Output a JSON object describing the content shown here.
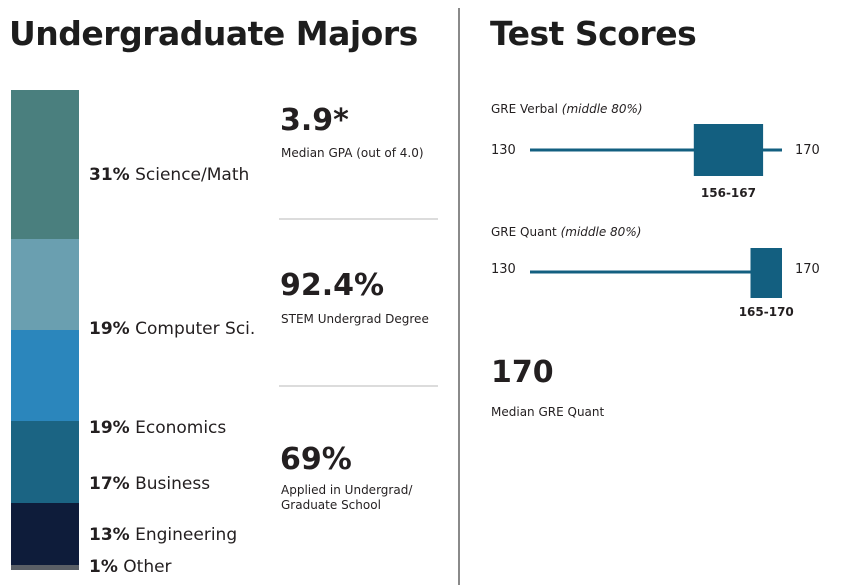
{
  "left_heading": "Undergraduate Majors",
  "right_heading": "Test Scores",
  "chart_data": [
    {
      "type": "bar",
      "stacked": true,
      "orientation": "vertical",
      "unit": "%",
      "categories": [
        "Science/Math",
        "Computer Sci.",
        "Economics",
        "Business",
        "Engineering",
        "Other"
      ],
      "values": [
        31,
        19,
        19,
        17,
        13,
        1
      ],
      "labels": [
        "31%",
        "19%",
        "19%",
        "17%",
        "13%",
        "1%"
      ],
      "colors": [
        "#4a7f7e",
        "#6a9fb0",
        "#2b86bc",
        "#1b6483",
        "#0e1c3a",
        "#5a5f66"
      ],
      "title": "Undergraduate Majors"
    },
    {
      "type": "bar",
      "subtype": "range",
      "title": "GRE Verbal",
      "subtitle": "(middle 80%)",
      "scale_min": 130,
      "scale_max": 170,
      "range_low": 156,
      "range_high": 167,
      "range_label": "156-167",
      "min_label": "130",
      "max_label": "170",
      "color": "#135f80"
    },
    {
      "type": "bar",
      "subtype": "range",
      "title": "GRE Quant",
      "subtitle": "(middle 80%)",
      "scale_min": 130,
      "scale_max": 170,
      "range_low": 165,
      "range_high": 170,
      "range_label": "165-170",
      "min_label": "130",
      "max_label": "170",
      "color": "#135f80"
    }
  ],
  "stats": [
    {
      "value": "3.9*",
      "label": "Median GPA (out of 4.0)"
    },
    {
      "value": "92.4%",
      "label": "STEM Undergrad Degree"
    },
    {
      "value": "69%",
      "label_line1": "Applied in Undergrad/",
      "label_line2": "Graduate School"
    }
  ],
  "median_gre": {
    "value": "170",
    "label": "Median GRE Quant"
  }
}
